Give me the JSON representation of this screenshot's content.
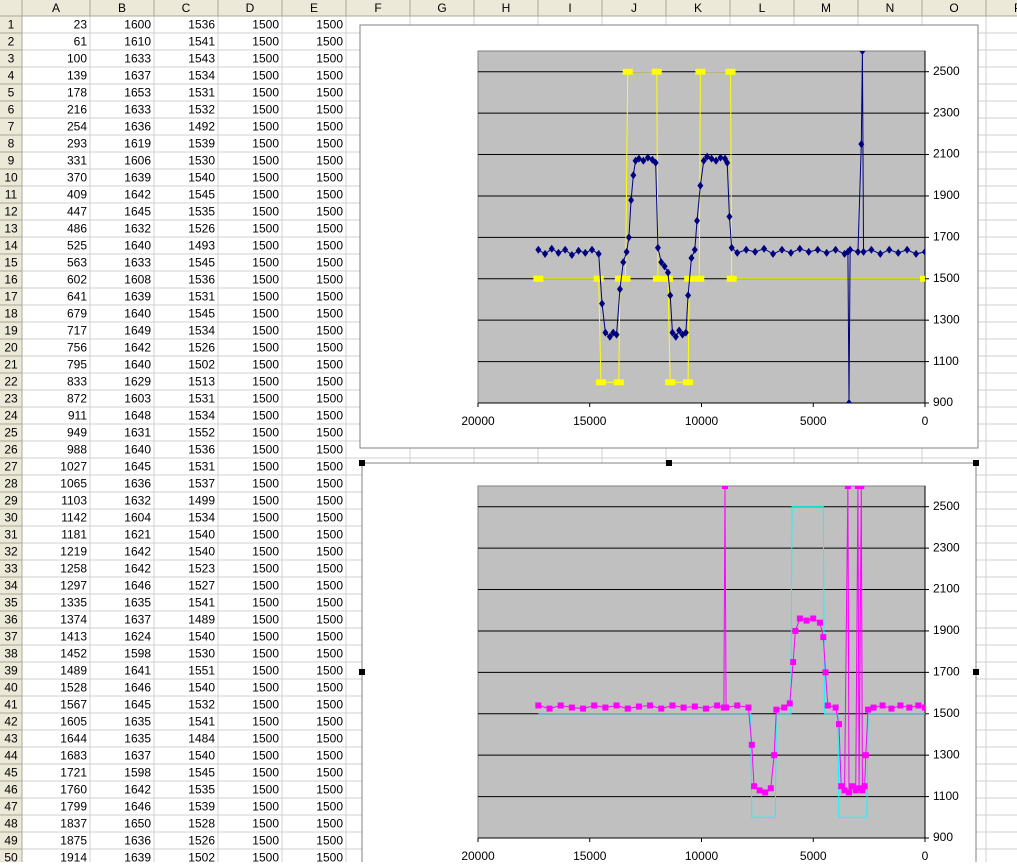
{
  "sheet": {
    "columns": [
      "A",
      "B",
      "C",
      "D",
      "E",
      "F",
      "G",
      "H",
      "I",
      "J",
      "K",
      "L",
      "M",
      "N",
      "O",
      "P"
    ],
    "row_numbers": [
      1,
      2,
      3,
      4,
      5,
      6,
      7,
      8,
      9,
      10,
      11,
      12,
      13,
      14,
      15,
      16,
      17,
      18,
      19,
      20,
      21,
      22,
      23,
      24,
      25,
      26,
      27,
      28,
      29,
      30,
      31,
      32,
      33,
      34,
      35,
      36,
      37,
      38,
      39,
      40,
      41,
      42,
      43,
      44,
      45,
      46,
      47,
      48,
      49,
      50
    ],
    "rows": [
      [
        23,
        1600,
        1536,
        1500,
        1500
      ],
      [
        61,
        1610,
        1541,
        1500,
        1500
      ],
      [
        100,
        1633,
        1543,
        1500,
        1500
      ],
      [
        139,
        1637,
        1534,
        1500,
        1500
      ],
      [
        178,
        1653,
        1531,
        1500,
        1500
      ],
      [
        216,
        1633,
        1532,
        1500,
        1500
      ],
      [
        254,
        1636,
        1492,
        1500,
        1500
      ],
      [
        293,
        1619,
        1539,
        1500,
        1500
      ],
      [
        331,
        1606,
        1530,
        1500,
        1500
      ],
      [
        370,
        1639,
        1540,
        1500,
        1500
      ],
      [
        409,
        1642,
        1545,
        1500,
        1500
      ],
      [
        447,
        1645,
        1535,
        1500,
        1500
      ],
      [
        486,
        1632,
        1526,
        1500,
        1500
      ],
      [
        525,
        1640,
        1493,
        1500,
        1500
      ],
      [
        563,
        1633,
        1545,
        1500,
        1500
      ],
      [
        602,
        1608,
        1536,
        1500,
        1500
      ],
      [
        641,
        1639,
        1531,
        1500,
        1500
      ],
      [
        679,
        1640,
        1545,
        1500,
        1500
      ],
      [
        717,
        1649,
        1534,
        1500,
        1500
      ],
      [
        756,
        1642,
        1526,
        1500,
        1500
      ],
      [
        795,
        1640,
        1502,
        1500,
        1500
      ],
      [
        833,
        1629,
        1513,
        1500,
        1500
      ],
      [
        872,
        1603,
        1531,
        1500,
        1500
      ],
      [
        911,
        1648,
        1534,
        1500,
        1500
      ],
      [
        949,
        1631,
        1552,
        1500,
        1500
      ],
      [
        988,
        1640,
        1536,
        1500,
        1500
      ],
      [
        1027,
        1645,
        1531,
        1500,
        1500
      ],
      [
        1065,
        1636,
        1537,
        1500,
        1500
      ],
      [
        1103,
        1632,
        1499,
        1500,
        1500
      ],
      [
        1142,
        1604,
        1534,
        1500,
        1500
      ],
      [
        1181,
        1621,
        1540,
        1500,
        1500
      ],
      [
        1219,
        1642,
        1540,
        1500,
        1500
      ],
      [
        1258,
        1642,
        1523,
        1500,
        1500
      ],
      [
        1297,
        1646,
        1527,
        1500,
        1500
      ],
      [
        1335,
        1635,
        1541,
        1500,
        1500
      ],
      [
        1374,
        1637,
        1489,
        1500,
        1500
      ],
      [
        1413,
        1624,
        1540,
        1500,
        1500
      ],
      [
        1452,
        1598,
        1530,
        1500,
        1500
      ],
      [
        1489,
        1641,
        1551,
        1500,
        1500
      ],
      [
        1528,
        1646,
        1540,
        1500,
        1500
      ],
      [
        1567,
        1645,
        1532,
        1500,
        1500
      ],
      [
        1605,
        1635,
        1541,
        1500,
        1500
      ],
      [
        1644,
        1635,
        1484,
        1500,
        1500
      ],
      [
        1683,
        1637,
        1540,
        1500,
        1500
      ],
      [
        1721,
        1598,
        1545,
        1500,
        1500
      ],
      [
        1760,
        1642,
        1535,
        1500,
        1500
      ],
      [
        1799,
        1646,
        1539,
        1500,
        1500
      ],
      [
        1837,
        1650,
        1528,
        1500,
        1500
      ],
      [
        1875,
        1636,
        1526,
        1500,
        1500
      ],
      [
        1914,
        1639,
        1502,
        1500,
        1500
      ]
    ]
  },
  "chart_data": [
    {
      "type": "line",
      "xlim": [
        20000,
        0
      ],
      "ylim": [
        900,
        2600
      ],
      "xticks": [
        20000,
        15000,
        10000,
        5000,
        0
      ],
      "yticks": [
        900,
        1100,
        1300,
        1500,
        1700,
        1900,
        2100,
        2300,
        2500
      ],
      "grid": true,
      "plot_color": "#c0c0c0",
      "series": [
        {
          "color": "#ffff00",
          "marker": "dash",
          "x": [
            17300,
            14600,
            14500,
            13700,
            13650,
            13400,
            13300,
            12000,
            11950,
            11500,
            11400,
            10600,
            10550,
            10100,
            10050,
            8700,
            8650,
            0
          ],
          "values": [
            1500,
            1500,
            1000,
            1000,
            1500,
            1500,
            2500,
            2500,
            1500,
            1500,
            1000,
            1000,
            1500,
            1500,
            2500,
            2500,
            1500,
            1500
          ]
        },
        {
          "color": "#000080",
          "marker": "diamond",
          "x": [
            17300,
            17000,
            16700,
            16400,
            16100,
            15800,
            15500,
            15200,
            14900,
            14600,
            14450,
            14300,
            14100,
            13950,
            13800,
            13650,
            13500,
            13350,
            13250,
            13150,
            13050,
            12950,
            12800,
            12600,
            12400,
            12200,
            12050,
            11950,
            11800,
            11650,
            11500,
            11400,
            11300,
            11150,
            11000,
            10850,
            10700,
            10600,
            10450,
            10300,
            10200,
            10050,
            9900,
            9750,
            9550,
            9350,
            9150,
            8950,
            8850,
            8750,
            8650,
            8400,
            8000,
            7600,
            7200,
            6800,
            6400,
            6000,
            5600,
            5200,
            4800,
            4400,
            4000,
            3600,
            3450,
            3400,
            3350,
            3000,
            2850,
            2800,
            2750,
            2400,
            2000,
            1600,
            1200,
            800,
            400,
            0
          ],
          "values": [
            1640,
            1620,
            1645,
            1625,
            1640,
            1615,
            1635,
            1625,
            1640,
            1620,
            1380,
            1240,
            1220,
            1240,
            1230,
            1450,
            1580,
            1630,
            1700,
            1880,
            2000,
            2070,
            2080,
            2070,
            2085,
            2075,
            2060,
            1650,
            1580,
            1560,
            1530,
            1420,
            1240,
            1220,
            1250,
            1230,
            1240,
            1420,
            1600,
            1640,
            1780,
            1950,
            2070,
            2090,
            2080,
            2070,
            2085,
            2080,
            2060,
            1800,
            1650,
            1625,
            1640,
            1630,
            1645,
            1620,
            1640,
            1625,
            1645,
            1630,
            1640,
            1625,
            1640,
            1620,
            1630,
            900,
            1640,
            1630,
            2150,
            2600,
            1630,
            1640,
            1620,
            1640,
            1625,
            1640,
            1620,
            1630
          ]
        }
      ]
    },
    {
      "type": "line",
      "xlim": [
        20000,
        0
      ],
      "ylim": [
        900,
        2600
      ],
      "xticks": [
        20000,
        15000,
        10000,
        5000,
        0
      ],
      "yticks": [
        900,
        1100,
        1300,
        1500,
        1700,
        1900,
        2100,
        2300,
        2500
      ],
      "grid": true,
      "plot_color": "#c0c0c0",
      "series": [
        {
          "color": "#00ffff",
          "marker": "none",
          "x": [
            17300,
            7800,
            7750,
            6700,
            6650,
            6000,
            5950,
            4550,
            4500,
            3900,
            3850,
            2600,
            2550,
            0
          ],
          "values": [
            1500,
            1500,
            1000,
            1000,
            1500,
            1500,
            2500,
            2500,
            1500,
            1500,
            1000,
            1000,
            1500,
            1500
          ]
        },
        {
          "color": "#ff00ff",
          "marker": "square",
          "x": [
            17300,
            16800,
            16300,
            15800,
            15300,
            14800,
            14300,
            13800,
            13300,
            12800,
            12300,
            11800,
            11300,
            10800,
            10300,
            9800,
            9300,
            9000,
            8950,
            8900,
            8400,
            7900,
            7750,
            7650,
            7400,
            7150,
            6900,
            6750,
            6650,
            6300,
            6050,
            5900,
            5800,
            5600,
            5300,
            5000,
            4700,
            4550,
            4450,
            4350,
            4000,
            3850,
            3750,
            3600,
            3450,
            3400,
            3250,
            3100,
            3000,
            2950,
            2850,
            2800,
            2700,
            2650,
            2550,
            2300,
            1900,
            1500,
            1100,
            700,
            300,
            0
          ],
          "values": [
            1540,
            1525,
            1540,
            1530,
            1525,
            1540,
            1530,
            1540,
            1525,
            1535,
            1540,
            1525,
            1540,
            1530,
            1535,
            1525,
            1540,
            1530,
            2600,
            1530,
            1540,
            1530,
            1350,
            1150,
            1130,
            1120,
            1140,
            1300,
            1520,
            1530,
            1550,
            1750,
            1900,
            1960,
            1950,
            1960,
            1940,
            1870,
            1700,
            1540,
            1530,
            1450,
            1150,
            1130,
            2600,
            1120,
            1150,
            1130,
            2600,
            1140,
            2600,
            1130,
            1150,
            1300,
            1520,
            1530,
            1540,
            1525,
            1540,
            1530,
            1540,
            1530
          ]
        }
      ]
    }
  ]
}
